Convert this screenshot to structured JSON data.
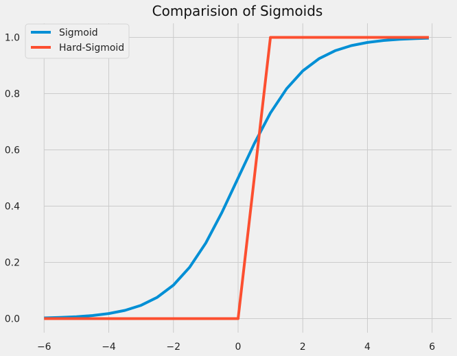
{
  "chart_data": {
    "type": "line",
    "title": "Comparision of Sigmoids",
    "xlabel": "",
    "ylabel": "",
    "xlim": [
      -6.6,
      6.6
    ],
    "ylim": [
      -0.05,
      1.05
    ],
    "x_ticks": [
      -6,
      -4,
      -2,
      0,
      2,
      4,
      6
    ],
    "x_tick_labels": [
      "−6",
      "−4",
      "−2",
      "0",
      "2",
      "4",
      "6"
    ],
    "y_ticks": [
      0.0,
      0.2,
      0.4,
      0.6,
      0.8,
      1.0
    ],
    "y_tick_labels": [
      "0.0",
      "0.2",
      "0.4",
      "0.6",
      "0.8",
      "1.0"
    ],
    "grid": true,
    "legend_position": "top-left",
    "series": [
      {
        "name": "Sigmoid",
        "color": "#008fd5",
        "x": [
          -6,
          -5.5,
          -5,
          -4.5,
          -4,
          -3.5,
          -3,
          -2.5,
          -2,
          -1.5,
          -1,
          -0.5,
          0,
          0.5,
          1,
          1.5,
          2,
          2.5,
          3,
          3.5,
          4,
          4.5,
          5,
          5.5,
          5.9
        ],
        "y": [
          0.0025,
          0.0041,
          0.0067,
          0.011,
          0.018,
          0.0293,
          0.0474,
          0.0759,
          0.1192,
          0.1824,
          0.2689,
          0.3775,
          0.5,
          0.6225,
          0.7311,
          0.8176,
          0.8808,
          0.9241,
          0.9526,
          0.9707,
          0.982,
          0.989,
          0.9933,
          0.9959,
          0.9973
        ]
      },
      {
        "name": "Hard-Sigmoid",
        "color": "#fc4f30",
        "x": [
          -6,
          0,
          1,
          5.9
        ],
        "y": [
          0,
          0,
          1,
          1
        ]
      }
    ]
  }
}
